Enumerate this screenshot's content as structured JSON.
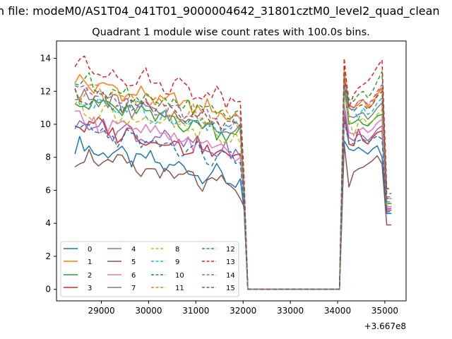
{
  "figure": {
    "suptitle": "n file: modeM0/AS1T04_041T01_9000004642_31801cztM0_level2_quad_clean"
  },
  "chart_data": {
    "type": "line",
    "title": "Quadrant 1 module wise count rates with 100.0s bins.",
    "xlabel": "",
    "ylabel": "",
    "x_offset_label": "+3.667e8",
    "xlim": [
      28050,
      35450
    ],
    "ylim": [
      -0.7,
      15.05
    ],
    "xticks": [
      29000,
      30000,
      31000,
      32000,
      33000,
      34000,
      35000
    ],
    "xtick_labels": [
      "29000",
      "30000",
      "31000",
      "32000",
      "33000",
      "34000",
      "35000"
    ],
    "yticks": [
      0,
      2,
      4,
      6,
      8,
      10,
      12,
      14
    ],
    "ytick_labels": [
      "0",
      "2",
      "4",
      "6",
      "8",
      "10",
      "12",
      "14"
    ],
    "grid": false,
    "legend_position": "lower-left",
    "legend_columns": 4,
    "series": [
      {
        "name": "0",
        "color": "#1f77b4",
        "dash": "solid",
        "base": 7.6,
        "gap_start": 4.8,
        "burst": [
          9.0,
          8.5,
          8.4,
          8.6,
          8.4,
          8.2,
          8.5,
          8.7,
          8.0,
          4.6
        ]
      },
      {
        "name": "1",
        "color": "#ff7f0e",
        "dash": "solid",
        "base": 11.5,
        "gap_start": 6.2,
        "burst": [
          13.3,
          11.1,
          11.0,
          11.2,
          11.5,
          11.0,
          11.2,
          11.8,
          12.2,
          5.2
        ]
      },
      {
        "name": "2",
        "color": "#2ca02c",
        "dash": "solid",
        "base": 10.4,
        "gap_start": 5.6,
        "burst": [
          12.1,
          10.0,
          10.1,
          10.3,
          10.0,
          9.9,
          10.2,
          10.5,
          10.6,
          5.0
        ]
      },
      {
        "name": "3",
        "color": "#d62728",
        "dash": "solid",
        "base": 9.0,
        "gap_start": 5.2,
        "burst": [
          10.6,
          8.8,
          8.7,
          9.7,
          9.0,
          8.8,
          9.2,
          9.5,
          9.6,
          4.8
        ]
      },
      {
        "name": "4",
        "color": "#9467bd",
        "dash": "solid",
        "base": 9.1,
        "gap_start": 5.3,
        "burst": [
          10.9,
          9.2,
          9.0,
          9.4,
          9.3,
          9.0,
          9.3,
          9.7,
          9.9,
          4.9
        ]
      },
      {
        "name": "5",
        "color": "#8c564b",
        "dash": "solid",
        "base": 7.0,
        "gap_start": 5.0,
        "burst": [
          8.8,
          6.2,
          7.1,
          7.3,
          7.4,
          7.6,
          7.8,
          8.1,
          7.6,
          3.9
        ]
      },
      {
        "name": "6",
        "color": "#e377c2",
        "dash": "solid",
        "base": 9.3,
        "gap_start": 5.4,
        "burst": [
          11.2,
          9.5,
          9.4,
          9.6,
          9.8,
          9.5,
          9.7,
          10.1,
          10.3,
          5.0
        ]
      },
      {
        "name": "7",
        "color": "#7f7f7f",
        "dash": "solid",
        "base": 10.6,
        "gap_start": 5.8,
        "burst": [
          12.4,
          10.5,
          10.4,
          10.6,
          10.7,
          10.3,
          10.6,
          11.0,
          11.3,
          5.2
        ]
      },
      {
        "name": "8",
        "color": "#bcbd22",
        "dash": "dashed",
        "base": 10.0,
        "gap_start": 5.6,
        "burst": [
          11.8,
          10.4,
          9.3,
          10.1,
          10.4,
          10.0,
          10.2,
          10.6,
          10.9,
          5.1
        ]
      },
      {
        "name": "9",
        "color": "#17becf",
        "dash": "dashed",
        "base": 10.5,
        "gap_start": 5.7,
        "burst": [
          12.3,
          11.0,
          10.9,
          10.3,
          11.0,
          10.6,
          10.8,
          11.3,
          11.6,
          5.3
        ]
      },
      {
        "name": "10",
        "color": "#1f77b4",
        "dash": "dashed",
        "base": 8.7,
        "gap_start": 5.1,
        "burst": [
          10.2,
          8.9,
          8.8,
          9.0,
          9.1,
          8.9,
          9.1,
          9.3,
          9.1,
          4.7
        ]
      },
      {
        "name": "11",
        "color": "#ff7f0e",
        "dash": "dashed",
        "base": 11.0,
        "gap_start": 6.0,
        "burst": [
          12.8,
          11.2,
          11.0,
          11.4,
          11.5,
          11.1,
          11.4,
          11.9,
          12.3,
          5.5
        ]
      },
      {
        "name": "12",
        "color": "#2ca02c",
        "dash": "dashed",
        "base": 11.5,
        "gap_start": 6.4,
        "burst": [
          13.6,
          11.5,
          11.4,
          11.8,
          12.0,
          11.6,
          12.0,
          12.6,
          13.2,
          5.8
        ]
      },
      {
        "name": "13",
        "color": "#d62728",
        "dash": "dashed",
        "base": 12.5,
        "gap_start": 6.8,
        "burst": [
          14.0,
          11.0,
          11.8,
          12.2,
          12.4,
          12.6,
          13.0,
          13.5,
          13.9,
          6.1
        ]
      },
      {
        "name": "14",
        "color": "#9467bd",
        "dash": "dashed",
        "base": 11.0,
        "gap_start": 6.1,
        "burst": [
          12.9,
          11.2,
          11.0,
          11.4,
          11.5,
          11.2,
          11.5,
          12.0,
          12.4,
          5.6
        ]
      },
      {
        "name": "15",
        "color": "#8c564b",
        "dash": "dashed",
        "base": 10.8,
        "gap_start": 6.0,
        "burst": [
          12.7,
          11.0,
          10.8,
          11.1,
          11.2,
          10.9,
          11.2,
          11.7,
          12.0,
          5.5
        ]
      }
    ],
    "segments": {
      "active1": {
        "x_start": 28440,
        "x_end": 31940,
        "step": 100,
        "start_offset": 1.1,
        "end_offset": -1.0
      },
      "gap": {
        "x": [
          32040,
          34040
        ],
        "value": 0
      },
      "active2": {
        "x": [
          34140,
          34240,
          34340,
          34440,
          34540,
          34640,
          34740,
          34840,
          34940,
          35040,
          35140
        ]
      }
    },
    "colors": {
      "axis": "#000000",
      "background": "#ffffff"
    }
  }
}
